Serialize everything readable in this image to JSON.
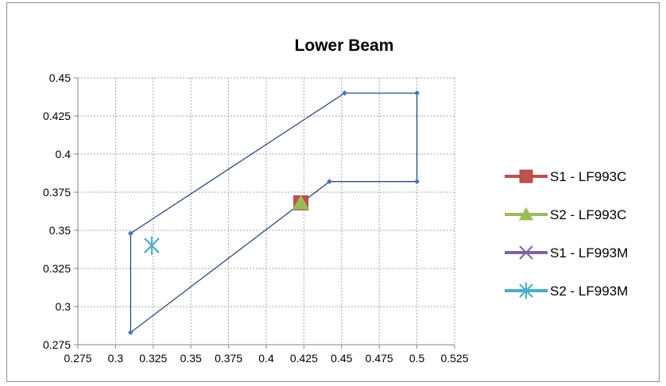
{
  "chart_data": {
    "type": "scatter",
    "title": "Lower Beam",
    "xlabel": "",
    "ylabel": "",
    "xlim": [
      0.275,
      0.525
    ],
    "ylim": [
      0.275,
      0.45
    ],
    "x_ticks": [
      "0.275",
      "0.3",
      "0.325",
      "0.35",
      "0.375",
      "0.4",
      "0.425",
      "0.45",
      "0.475",
      "0.5",
      "0.525"
    ],
    "y_ticks": [
      "0.275",
      "0.3",
      "0.325",
      "0.35",
      "0.375",
      "0.4",
      "0.425",
      "0.45"
    ],
    "grid": true,
    "legend_position": "right",
    "boundary": {
      "color": "#1f3f73",
      "marker_color": "#4472c4",
      "points": [
        {
          "x": 0.31,
          "y": 0.348
        },
        {
          "x": 0.452,
          "y": 0.44
        },
        {
          "x": 0.5,
          "y": 0.44
        },
        {
          "x": 0.5,
          "y": 0.382
        },
        {
          "x": 0.442,
          "y": 0.382
        },
        {
          "x": 0.31,
          "y": 0.283
        },
        {
          "x": 0.31,
          "y": 0.348
        }
      ]
    },
    "series": [
      {
        "name": "S1 - LF993C",
        "marker": "square",
        "color": "#c0504d",
        "x": 0.423,
        "y": 0.368
      },
      {
        "name": "S2 - LF993C",
        "marker": "triangle",
        "color": "#9bbb59",
        "x": 0.423,
        "y": 0.368
      },
      {
        "name": "S1 - LF993M",
        "marker": "x",
        "color": "#8064a2",
        "x": 0.324,
        "y": 0.34
      },
      {
        "name": "S2 - LF993M",
        "marker": "star",
        "color": "#4bacc6",
        "x": 0.324,
        "y": 0.34
      }
    ]
  }
}
